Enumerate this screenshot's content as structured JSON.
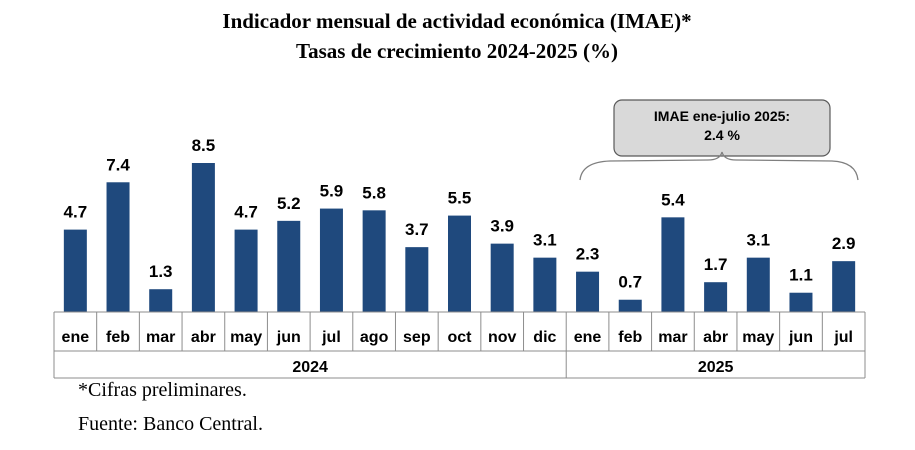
{
  "chart_data": {
    "type": "bar",
    "title": "Indicador mensual de actividad económica (IMAE)*",
    "subtitle": "Tasas de crecimiento 2024-2025 (%)",
    "categories": [
      "ene",
      "feb",
      "mar",
      "abr",
      "may",
      "jun",
      "jul",
      "ago",
      "sep",
      "oct",
      "nov",
      "dic",
      "ene",
      "feb",
      "mar",
      "abr",
      "may",
      "jun",
      "jul"
    ],
    "values": [
      4.7,
      7.4,
      1.3,
      8.5,
      4.7,
      5.2,
      5.9,
      5.8,
      3.7,
      5.5,
      3.9,
      3.1,
      2.3,
      0.7,
      5.4,
      1.7,
      3.1,
      1.1,
      2.9
    ],
    "value_labels": [
      "4.7",
      "7.4",
      "1.3",
      "8.5",
      "4.7",
      "5.2",
      "5.9",
      "5.8",
      "3.7",
      "5.5",
      "3.9",
      "3.1",
      "2.3",
      "0.7",
      "5.4",
      "1.7",
      "3.1",
      "1.1",
      "2.9"
    ],
    "groups": [
      {
        "label": "2024",
        "start": 0,
        "count": 12
      },
      {
        "label": "2025",
        "start": 12,
        "count": 7
      }
    ],
    "ylim": [
      0,
      8.5
    ],
    "bar_color": "#1f497d",
    "grid": false,
    "xlabel": "",
    "ylabel": ""
  },
  "callout": {
    "line1": "IMAE ene-julio 2025:",
    "line2": "2.4 %"
  },
  "footnotes": {
    "note": "*Cifras preliminares.",
    "source": "Fuente: Banco Central."
  }
}
